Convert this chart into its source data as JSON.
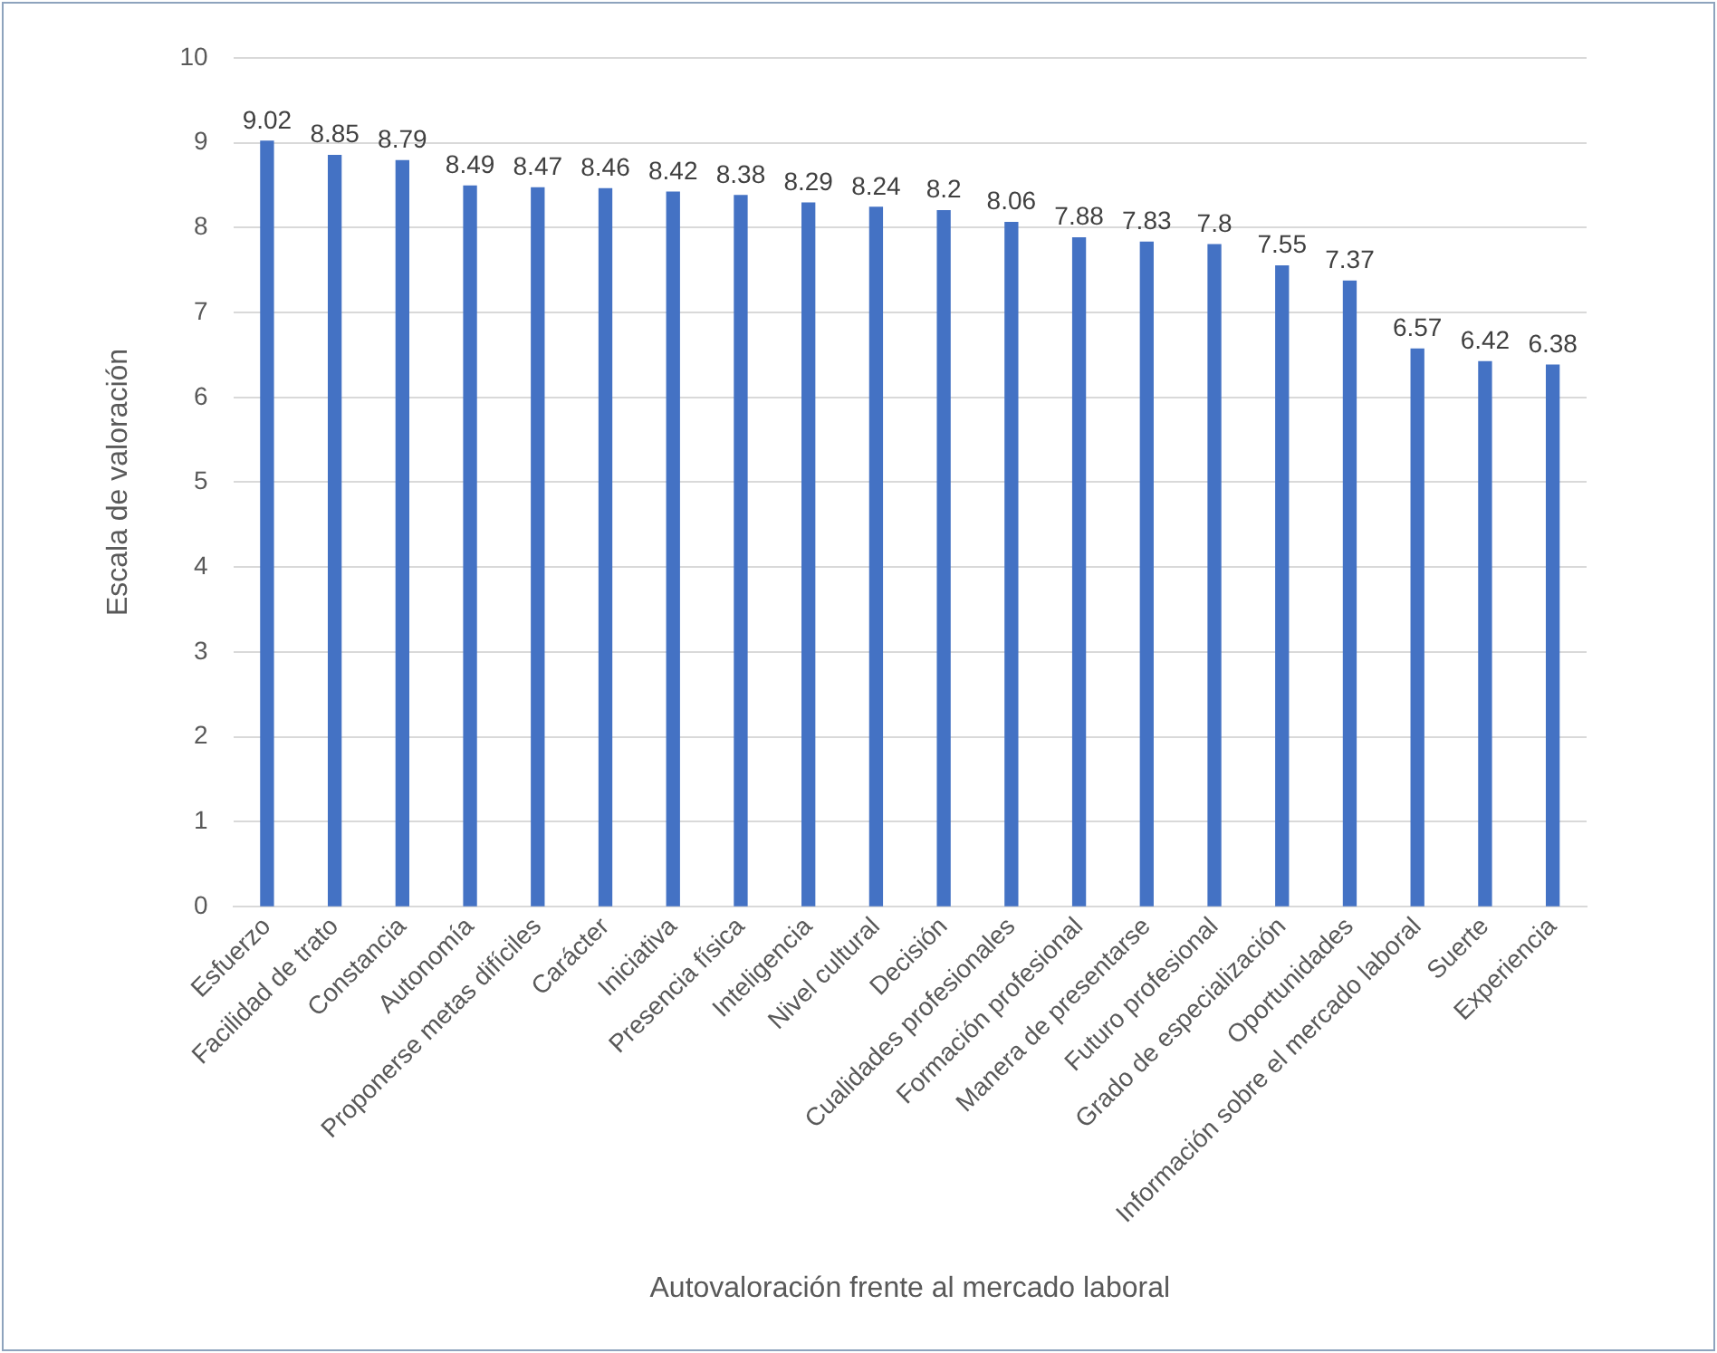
{
  "chart_data": {
    "type": "bar",
    "xlabel": "Autovaloración frente al mercado laboral",
    "ylabel": "Escala de valoración",
    "categories": [
      "Esfuerzo",
      "Facilidad de trato",
      "Constancia",
      "Autonomía",
      "Proponerse metas difíciles",
      "Carácter",
      "Iniciativa",
      "Presencia física",
      "Inteligencia",
      "Nivel cultural",
      "Decisión",
      "Cualidades profesionales",
      "Formación profesional",
      "Manera de presentarse",
      "Futuro profesional",
      "Grado de especialización",
      "Oportunidades",
      "Información sobre el mercado laboral",
      "Suerte",
      "Experiencia"
    ],
    "values": [
      9.02,
      8.85,
      8.79,
      8.49,
      8.47,
      8.46,
      8.42,
      8.38,
      8.29,
      8.24,
      8.2,
      8.06,
      7.88,
      7.83,
      7.8,
      7.55,
      7.37,
      6.57,
      6.42,
      6.38
    ],
    "color": "#4472c4",
    "ylim": [
      0,
      10
    ],
    "yticks": [
      0,
      1,
      2,
      3,
      4,
      5,
      6,
      7,
      8,
      9,
      10
    ],
    "grid": "y",
    "legend": false,
    "data_labels": true
  }
}
